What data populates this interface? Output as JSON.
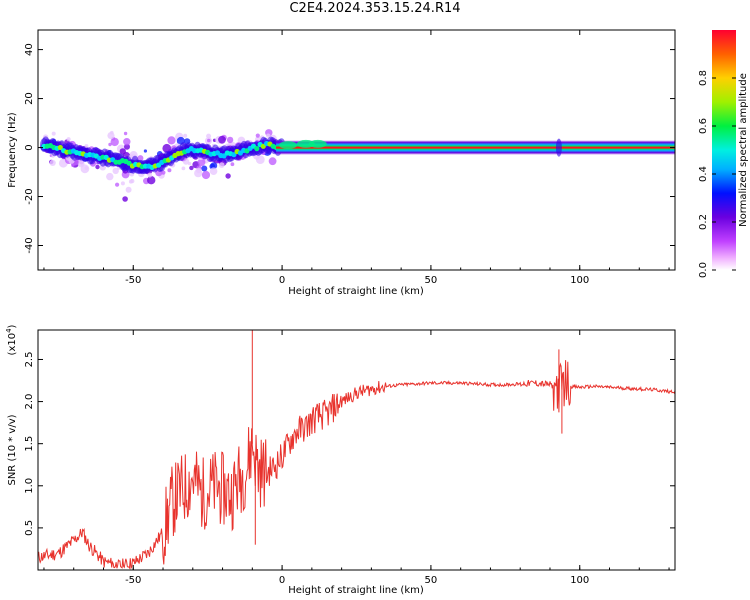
{
  "title": "C2E4.2024.353.15.24.R14",
  "chart_data": [
    {
      "type": "heatmap",
      "xlabel": "Height of straight line (km)",
      "ylabel": "Frequency (Hz)",
      "xlim": [
        -82,
        132
      ],
      "ylim": [
        -50,
        48
      ],
      "xticks": [
        -50,
        0,
        50,
        100
      ],
      "yticks": [
        -40,
        -20,
        0,
        20,
        40
      ],
      "colorbar": {
        "label": "Normalized spectral amplitude",
        "range": [
          0,
          1
        ],
        "ticks": [
          "0.0",
          "0.2",
          "0.4",
          "0.6",
          "0.8"
        ],
        "colormap": "rainbow (white-magenta-purple-blue-cyan-green-yellow-orange-red)"
      },
      "ridge": [
        {
          "x": -80,
          "y": 1
        },
        {
          "x": -70,
          "y": -2
        },
        {
          "x": -60,
          "y": -4
        },
        {
          "x": -50,
          "y": -7
        },
        {
          "x": -45,
          "y": -8
        },
        {
          "x": -40,
          "y": -6
        },
        {
          "x": -35,
          "y": -2
        },
        {
          "x": -30,
          "y": -1
        },
        {
          "x": -25,
          "y": -2
        },
        {
          "x": -20,
          "y": -3
        },
        {
          "x": -15,
          "y": -2
        },
        {
          "x": -10,
          "y": 0
        },
        {
          "x": -5,
          "y": 1
        },
        {
          "x": 0,
          "y": 0
        },
        {
          "x": 5,
          "y": 1
        },
        {
          "x": 10,
          "y": 1
        },
        {
          "x": 20,
          "y": 0
        },
        {
          "x": 130,
          "y": 0
        }
      ]
    },
    {
      "type": "line",
      "xlabel": "Height of straight line (km)",
      "ylabel": "SNR (10 * v/v)",
      "yscale_note": "(x10",
      "yscale_exp": "4",
      "xlim": [
        -82,
        132
      ],
      "ylim": [
        0,
        2.85
      ],
      "xticks": [
        -50,
        0,
        50,
        100
      ],
      "yticks": [
        0.5,
        1.0,
        1.5,
        2.0,
        2.5
      ],
      "ytick_labels": [
        "0.5",
        "1.0",
        "1.5",
        "2.0",
        "2.5"
      ],
      "color": "#e8332d",
      "x": [
        -82,
        -75,
        -70,
        -67,
        -65,
        -60,
        -55,
        -50,
        -45,
        -40,
        -37,
        -35,
        -32,
        -30,
        -27,
        -25,
        -22,
        -20,
        -17,
        -15,
        -12,
        -10,
        -8,
        -5,
        -2,
        0,
        3,
        5,
        8,
        10,
        12,
        15,
        18,
        20,
        25,
        30,
        35,
        40,
        45,
        50,
        55,
        60,
        65,
        70,
        75,
        80,
        85,
        90,
        93,
        95,
        97,
        100,
        105,
        110,
        115,
        120,
        125,
        130,
        132
      ],
      "values": [
        0.15,
        0.2,
        0.35,
        0.45,
        0.3,
        0.1,
        0.05,
        0.08,
        0.2,
        0.45,
        0.8,
        0.9,
        1.0,
        1.1,
        0.9,
        0.95,
        1.0,
        0.95,
        0.9,
        1.05,
        1.2,
        1.5,
        1.2,
        1.15,
        1.25,
        1.35,
        1.55,
        1.65,
        1.7,
        1.78,
        1.82,
        1.85,
        1.95,
        2.0,
        2.1,
        2.15,
        2.18,
        2.2,
        2.21,
        2.22,
        2.22,
        2.22,
        2.21,
        2.2,
        2.2,
        2.21,
        2.22,
        2.2,
        2.15,
        2.25,
        2.18,
        2.17,
        2.18,
        2.17,
        2.16,
        2.15,
        2.14,
        2.12,
        2.12
      ]
    }
  ]
}
